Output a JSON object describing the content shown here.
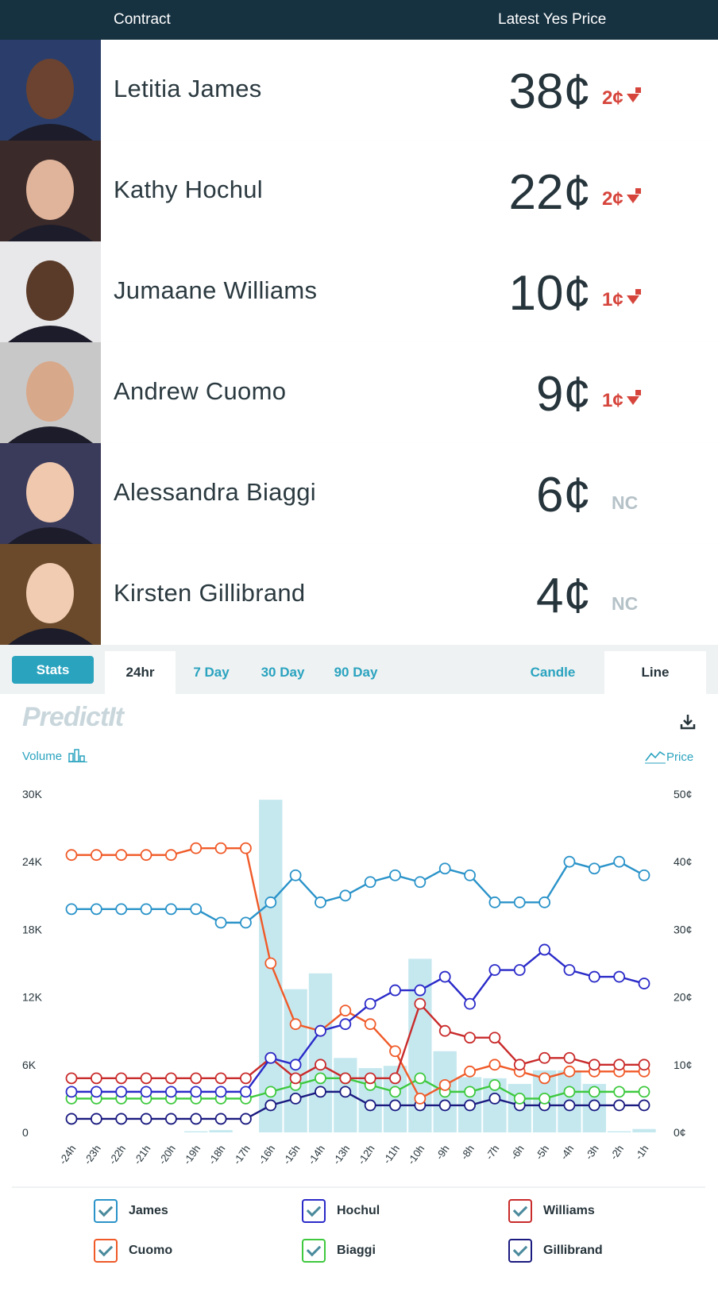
{
  "header": {
    "contract_label": "Contract",
    "price_label": "Latest Yes Price"
  },
  "contracts": [
    {
      "name": "Letitia James",
      "price": "38¢",
      "change": "2¢",
      "direction": "down",
      "bg": "#2b3e6b",
      "skin": "#6b4330"
    },
    {
      "name": "Kathy Hochul",
      "price": "22¢",
      "change": "2¢",
      "direction": "down",
      "bg": "#3a2a2a",
      "skin": "#e0b49a"
    },
    {
      "name": "Jumaane Williams",
      "price": "10¢",
      "change": "1¢",
      "direction": "down",
      "bg": "#e8e8ea",
      "skin": "#5a3a28"
    },
    {
      "name": "Andrew Cuomo",
      "price": "9¢",
      "change": "1¢",
      "direction": "down",
      "bg": "#c8c8c8",
      "skin": "#d8a88a"
    },
    {
      "name": "Alessandra Biaggi",
      "price": "6¢",
      "change": "NC",
      "direction": "none",
      "bg": "#3a3a5a",
      "skin": "#f0c8ae"
    },
    {
      "name": "Kirsten Gillibrand",
      "price": "4¢",
      "change": "NC",
      "direction": "none",
      "bg": "#6a4a2a",
      "skin": "#f2ccb2"
    }
  ],
  "tabs": {
    "stats": "Stats",
    "periods": [
      "24hr",
      "7 Day",
      "30 Day",
      "90 Day"
    ],
    "active_period": "24hr",
    "chart_types": [
      "Candle",
      "Line"
    ],
    "active_chart_type": "Line"
  },
  "logo": "PredictIt",
  "labels": {
    "volume": "Volume",
    "price": "Price"
  },
  "chart_data": {
    "type": "line",
    "x": [
      "-24h",
      "-23h",
      "-22h",
      "-21h",
      "-20h",
      "-19h",
      "-18h",
      "-17h",
      "-16h",
      "-15h",
      "-14h",
      "-13h",
      "-12h",
      "-11h",
      "-10h",
      "-9h",
      "-8h",
      "-7h",
      "-6h",
      "-5h",
      "-4h",
      "-3h",
      "-2h",
      "-1h"
    ],
    "volume_axis": {
      "ticks": [
        "0",
        "6K",
        "12K",
        "18K",
        "24K",
        "30K"
      ],
      "ylim": [
        0,
        30000
      ]
    },
    "price_axis": {
      "ticks": [
        "0¢",
        "10¢",
        "20¢",
        "30¢",
        "40¢",
        "50¢"
      ],
      "ylim": [
        0,
        50
      ]
    },
    "volume": [
      0,
      0,
      0,
      0,
      0,
      100,
      200,
      0,
      29500,
      12700,
      14100,
      6600,
      5700,
      5900,
      15400,
      7200,
      4900,
      4800,
      4300,
      5500,
      5500,
      4300,
      100,
      300
    ],
    "series": [
      {
        "name": "James",
        "color": "#2a93c9",
        "values": [
          33,
          33,
          33,
          33,
          33,
          33,
          31,
          31,
          34,
          38,
          34,
          35,
          37,
          38,
          37,
          39,
          38,
          34,
          34,
          34,
          40,
          39,
          40,
          38
        ]
      },
      {
        "name": "Hochul",
        "color": "#2a2ac9",
        "values": [
          6,
          6,
          6,
          6,
          6,
          6,
          6,
          6,
          11,
          10,
          15,
          16,
          19,
          21,
          21,
          23,
          19,
          24,
          24,
          27,
          24,
          23,
          23,
          22
        ]
      },
      {
        "name": "Williams",
        "color": "#c92a2a",
        "values": [
          8,
          8,
          8,
          8,
          8,
          8,
          8,
          8,
          11,
          8,
          10,
          8,
          8,
          8,
          19,
          15,
          14,
          14,
          10,
          11,
          11,
          10,
          10,
          10
        ]
      },
      {
        "name": "Cuomo",
        "color": "#f05a28",
        "values": [
          41,
          41,
          41,
          41,
          41,
          42,
          42,
          42,
          25,
          16,
          15,
          18,
          16,
          12,
          5,
          7,
          9,
          10,
          9,
          8,
          9,
          9,
          9,
          9
        ]
      },
      {
        "name": "Biaggi",
        "color": "#3ec93e",
        "values": [
          5,
          5,
          5,
          5,
          5,
          5,
          5,
          5,
          6,
          7,
          8,
          8,
          7,
          6,
          8,
          6,
          6,
          7,
          5,
          5,
          6,
          6,
          6,
          6
        ]
      },
      {
        "name": "Gillibrand",
        "color": "#1a1a80",
        "values": [
          2,
          2,
          2,
          2,
          2,
          2,
          2,
          2,
          4,
          5,
          6,
          6,
          4,
          4,
          4,
          4,
          4,
          5,
          4,
          4,
          4,
          4,
          4,
          4
        ]
      }
    ]
  },
  "legend": [
    {
      "name": "James",
      "color": "#2a93c9"
    },
    {
      "name": "Hochul",
      "color": "#2a2ac9"
    },
    {
      "name": "Williams",
      "color": "#c92a2a"
    },
    {
      "name": "Cuomo",
      "color": "#f05a28"
    },
    {
      "name": "Biaggi",
      "color": "#3ec93e"
    },
    {
      "name": "Gillibrand",
      "color": "#1a1a80"
    }
  ]
}
